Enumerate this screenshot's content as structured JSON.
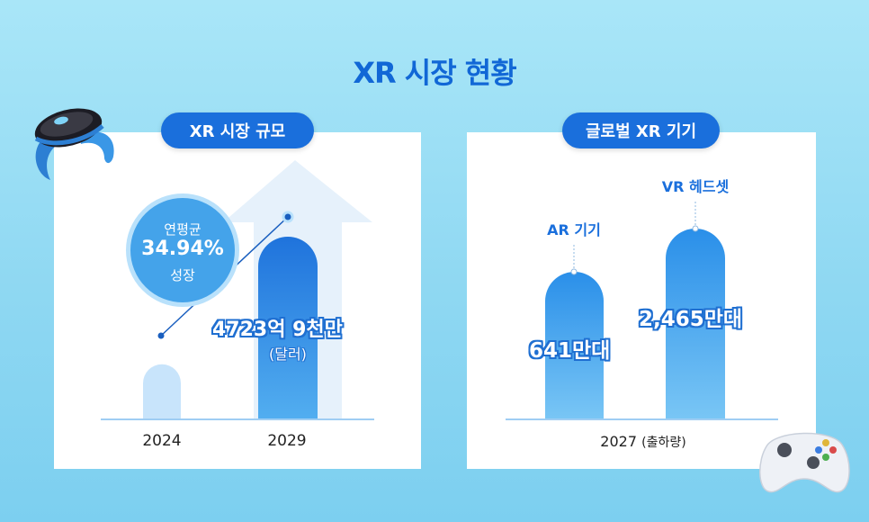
{
  "title": "XR 시장 현황",
  "chart_data": [
    {
      "type": "bar",
      "title": "XR 시장 규모",
      "categories": [
        "2024",
        "2029"
      ],
      "values": [
        null,
        4723.9
      ],
      "value_labels": [
        "",
        "4723억 9천만"
      ],
      "unit_label": "(달러)",
      "annotation": {
        "top": "연평균",
        "value": "34.94%",
        "bottom": "성장"
      },
      "colors": {
        "bar_light": "#c8e4fb",
        "bar_dark": "#1d78e0",
        "line": "#1a5fbf"
      }
    },
    {
      "type": "bar",
      "title": "글로벌 XR 기기",
      "categories": [
        "AR 기기",
        "VR 헤드셋"
      ],
      "values": [
        641,
        2465
      ],
      "value_labels": [
        "641만대",
        "2,465만대"
      ],
      "xlabel_main": "2027",
      "xlabel_sub": "(출하량)",
      "colors": {
        "bar": "#2d93ea"
      }
    }
  ]
}
